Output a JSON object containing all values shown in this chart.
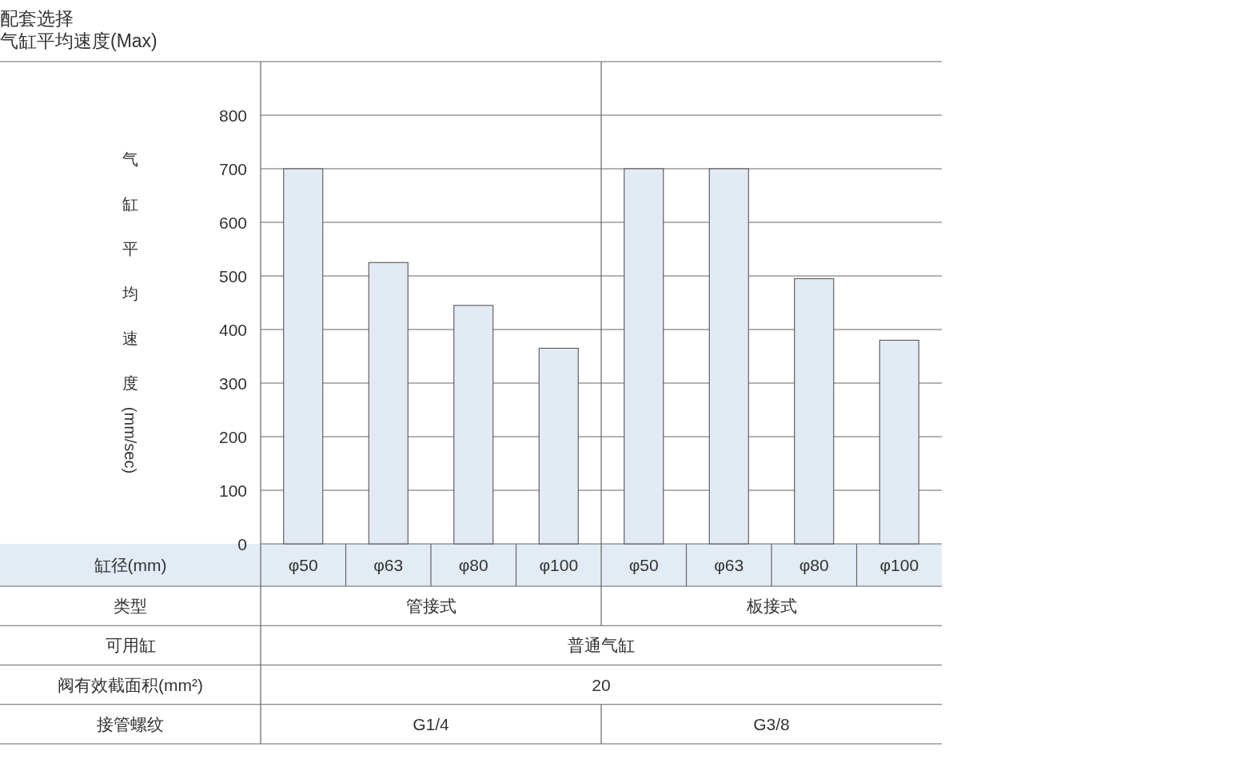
{
  "chart_data": {
    "type": "bar",
    "title": "配套选择",
    "subtitle": "气缸平均速度(Max)",
    "xlabel": "缸径(mm)",
    "ylabel": "气缸平均速度(mm/sec)",
    "categories": [
      "φ50",
      "φ63",
      "φ80",
      "φ100",
      "φ50",
      "φ63",
      "φ80",
      "φ100"
    ],
    "values": [
      700,
      525,
      445,
      365,
      700,
      700,
      495,
      380
    ],
    "color": "#e2eaf3",
    "ylim": [
      0,
      900
    ],
    "yticks": [
      0,
      100,
      200,
      300,
      400,
      500,
      600,
      700,
      800
    ],
    "grid": "y",
    "annotations": [
      "类型",
      "管接式",
      "板接式",
      "可用缸",
      "普通气缸",
      "阀有效截面积(mm²)",
      "20",
      "接管螺纹",
      "G1/4",
      "G3/8"
    ]
  }
}
